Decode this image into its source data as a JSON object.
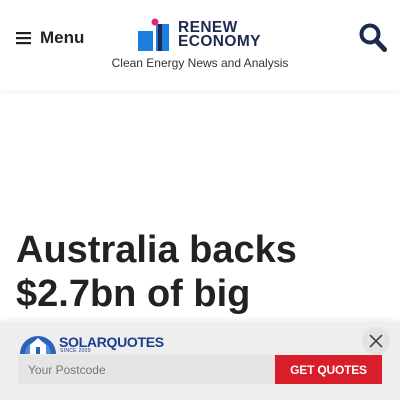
{
  "header": {
    "menu_icon": "hamburger-icon",
    "menu_label": "Menu",
    "logo": {
      "line1": "RENEW",
      "line2": "ECONOMY",
      "colors": {
        "blue": "#1e7ee0",
        "dark": "#1d2a4d",
        "pink": "#e2227a"
      }
    },
    "tagline": "Clean Energy News and Analysis",
    "search_icon": "search-icon"
  },
  "article": {
    "headline": "Australia backs $2.7bn of big"
  },
  "solarquotes": {
    "brand": "SOLARQUOTES",
    "since": "SINCE 2009",
    "postcode_placeholder": "Your Postcode",
    "button_label": "GET QUOTES",
    "button_color": "#d81e2a",
    "close_icon": "close-icon"
  }
}
